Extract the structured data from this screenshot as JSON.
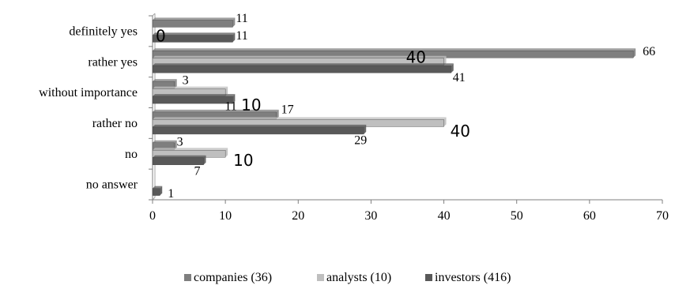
{
  "chart_data": {
    "type": "bar",
    "orientation": "horizontal",
    "categories": [
      "definitely yes",
      "rather yes",
      "without importance",
      "rather no",
      "no",
      "no answer"
    ],
    "series": [
      {
        "name": "companies (36)",
        "color": "#7f7f7f",
        "values": [
          11,
          66,
          3,
          17,
          3,
          null
        ],
        "labels": [
          "11",
          "66",
          "3",
          "17",
          "3",
          ""
        ]
      },
      {
        "name": "analysts (10)",
        "color": "#bfbfbf",
        "values": [
          0,
          40,
          10,
          40,
          10,
          null
        ],
        "labels": [
          "0",
          "40",
          "10",
          "40",
          "10",
          ""
        ]
      },
      {
        "name": "investors (416)",
        "color": "#595959",
        "values": [
          11,
          41,
          11,
          29,
          7,
          1
        ],
        "labels": [
          "11",
          "41",
          "11",
          "29",
          "7",
          "1"
        ]
      }
    ],
    "xlim": [
      0,
      70
    ],
    "xticks": [
      0,
      10,
      20,
      30,
      40,
      50,
      60,
      70
    ],
    "grid": false,
    "legend": "bottom"
  }
}
